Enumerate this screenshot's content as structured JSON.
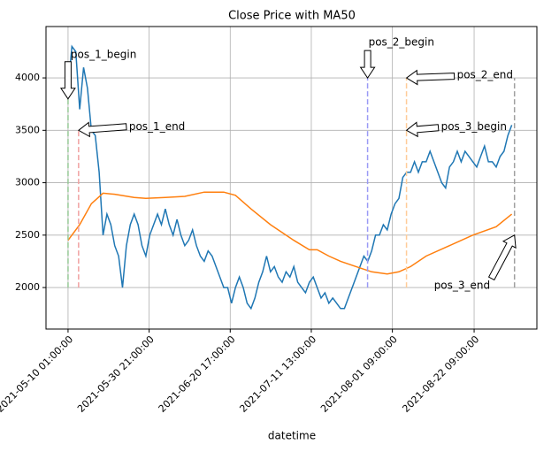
{
  "chart_data": {
    "type": "line",
    "title": "Close Price with MA50",
    "xlabel": "datetime",
    "grid": true,
    "xlim": [
      "2021-05-04 09:00:00",
      "2021-09-07 12:00:00"
    ],
    "ylim": [
      1604,
      4490
    ],
    "xticks": [
      "2021-05-10 01:00:00",
      "2021-05-30 21:00:00",
      "2021-06-20 17:00:00",
      "2021-07-11 13:00:00",
      "2021-08-01 09:00:00",
      "2021-08-22 09:00:00"
    ],
    "yticks": [
      2000,
      2500,
      3000,
      3500,
      4000
    ],
    "series": [
      {
        "color": "#1f77b4",
        "x": [
          "2021-05-10 01:00:00",
          "2021-05-11 01:00:00",
          "2021-05-12 01:00:00",
          "2021-05-13 01:00:00",
          "2021-05-14 01:00:00",
          "2021-05-15 01:00:00",
          "2021-05-16 01:00:00",
          "2021-05-17 01:00:00",
          "2021-05-18 01:00:00",
          "2021-05-19 01:00:00",
          "2021-05-20 01:00:00",
          "2021-05-21 01:00:00",
          "2021-05-22 01:00:00",
          "2021-05-23 01:00:00",
          "2021-05-24 01:00:00",
          "2021-05-25 01:00:00",
          "2021-05-26 01:00:00",
          "2021-05-27 01:00:00",
          "2021-05-28 01:00:00",
          "2021-05-29 01:00:00",
          "2021-05-30 01:00:00",
          "2021-05-31 01:00:00",
          "2021-06-01 01:00:00",
          "2021-06-02 01:00:00",
          "2021-06-03 01:00:00",
          "2021-06-04 01:00:00",
          "2021-06-05 01:00:00",
          "2021-06-06 01:00:00",
          "2021-06-07 01:00:00",
          "2021-06-08 01:00:00",
          "2021-06-09 01:00:00",
          "2021-06-10 01:00:00",
          "2021-06-11 01:00:00",
          "2021-06-12 01:00:00",
          "2021-06-13 01:00:00",
          "2021-06-14 01:00:00",
          "2021-06-15 01:00:00",
          "2021-06-16 01:00:00",
          "2021-06-17 01:00:00",
          "2021-06-18 01:00:00",
          "2021-06-19 01:00:00",
          "2021-06-20 01:00:00",
          "2021-06-21 01:00:00",
          "2021-06-22 01:00:00",
          "2021-06-23 01:00:00",
          "2021-06-24 01:00:00",
          "2021-06-25 01:00:00",
          "2021-06-26 01:00:00",
          "2021-06-27 01:00:00",
          "2021-06-28 01:00:00",
          "2021-06-29 01:00:00",
          "2021-06-30 01:00:00",
          "2021-07-01 01:00:00",
          "2021-07-02 01:00:00",
          "2021-07-03 01:00:00",
          "2021-07-04 01:00:00",
          "2021-07-05 01:00:00",
          "2021-07-06 01:00:00",
          "2021-07-07 01:00:00",
          "2021-07-08 01:00:00",
          "2021-07-09 01:00:00",
          "2021-07-10 01:00:00",
          "2021-07-11 01:00:00",
          "2021-07-12 01:00:00",
          "2021-07-13 01:00:00",
          "2021-07-14 01:00:00",
          "2021-07-15 01:00:00",
          "2021-07-16 01:00:00",
          "2021-07-17 01:00:00",
          "2021-07-18 01:00:00",
          "2021-07-19 01:00:00",
          "2021-07-20 01:00:00",
          "2021-07-21 01:00:00",
          "2021-07-22 01:00:00",
          "2021-07-23 01:00:00",
          "2021-07-24 01:00:00",
          "2021-07-25 01:00:00",
          "2021-07-26 01:00:00",
          "2021-07-27 01:00:00",
          "2021-07-28 01:00:00",
          "2021-07-29 01:00:00",
          "2021-07-30 01:00:00",
          "2021-07-31 01:00:00",
          "2021-08-01 01:00:00",
          "2021-08-02 01:00:00",
          "2021-08-03 01:00:00",
          "2021-08-04 01:00:00",
          "2021-08-05 01:00:00",
          "2021-08-06 01:00:00",
          "2021-08-07 01:00:00",
          "2021-08-08 01:00:00",
          "2021-08-09 01:00:00",
          "2021-08-10 01:00:00",
          "2021-08-11 01:00:00",
          "2021-08-12 01:00:00",
          "2021-08-13 01:00:00",
          "2021-08-14 01:00:00",
          "2021-08-15 01:00:00",
          "2021-08-16 01:00:00",
          "2021-08-17 01:00:00",
          "2021-08-18 01:00:00",
          "2021-08-19 01:00:00",
          "2021-08-20 01:00:00",
          "2021-08-21 01:00:00",
          "2021-08-22 01:00:00",
          "2021-08-23 01:00:00",
          "2021-08-24 01:00:00",
          "2021-08-25 01:00:00",
          "2021-08-26 01:00:00",
          "2021-08-27 01:00:00",
          "2021-08-28 01:00:00",
          "2021-08-29 01:00:00",
          "2021-08-30 01:00:00",
          "2021-08-31 01:00:00",
          "2021-09-01 01:00:00"
        ],
        "values": [
          3900,
          4300,
          4250,
          3700,
          4100,
          3900,
          3500,
          3450,
          3100,
          2500,
          2700,
          2600,
          2400,
          2300,
          2000,
          2400,
          2600,
          2700,
          2600,
          2400,
          2300,
          2500,
          2600,
          2700,
          2600,
          2750,
          2600,
          2500,
          2650,
          2500,
          2400,
          2450,
          2550,
          2400,
          2300,
          2250,
          2350,
          2300,
          2200,
          2100,
          2000,
          2000,
          1850,
          2000,
          2100,
          2000,
          1850,
          1800,
          1900,
          2050,
          2150,
          2300,
          2150,
          2200,
          2100,
          2050,
          2150,
          2100,
          2200,
          2050,
          2000,
          1950,
          2050,
          2100,
          2000,
          1900,
          1950,
          1850,
          1900,
          1850,
          1800,
          1800,
          1900,
          2000,
          2100,
          2200,
          2300,
          2250,
          2350,
          2500,
          2500,
          2600,
          2550,
          2700,
          2800,
          2850,
          3050,
          3100,
          3100,
          3200,
          3100,
          3200,
          3200,
          3300,
          3200,
          3100,
          3000,
          2950,
          3150,
          3200,
          3300,
          3200,
          3300,
          3250,
          3200,
          3150,
          3250,
          3350,
          3200,
          3200,
          3150,
          3250,
          3300,
          3450,
          3550
        ]
      },
      {
        "color": "#ff7f0e",
        "x": [
          "2021-05-10 01:00:00",
          "2021-05-13 01:00:00",
          "2021-05-16 01:00:00",
          "2021-05-19 01:00:00",
          "2021-05-22 01:00:00",
          "2021-05-27 01:00:00",
          "2021-05-30 01:00:00",
          "2021-06-04 01:00:00",
          "2021-06-09 01:00:00",
          "2021-06-14 01:00:00",
          "2021-06-19 01:00:00",
          "2021-06-22 01:00:00",
          "2021-06-26 01:00:00",
          "2021-07-01 01:00:00",
          "2021-07-07 01:00:00",
          "2021-07-11 01:00:00",
          "2021-07-13 01:00:00",
          "2021-07-16 01:00:00",
          "2021-07-19 01:00:00",
          "2021-07-23 01:00:00",
          "2021-07-27 01:00:00",
          "2021-07-31 01:00:00",
          "2021-08-03 01:00:00",
          "2021-08-06 01:00:00",
          "2021-08-10 01:00:00",
          "2021-08-16 01:00:00",
          "2021-08-22 01:00:00",
          "2021-08-28 01:00:00",
          "2021-09-01 01:00:00"
        ],
        "values": [
          2450,
          2600,
          2800,
          2900,
          2890,
          2860,
          2850,
          2860,
          2870,
          2910,
          2910,
          2880,
          2750,
          2600,
          2450,
          2360,
          2360,
          2300,
          2250,
          2200,
          2150,
          2130,
          2150,
          2200,
          2300,
          2400,
          2500,
          2580,
          2700
        ]
      }
    ],
    "vlines": [
      {
        "x": "2021-05-10 01:00:00",
        "ymin": 2000,
        "ymax": 4000,
        "color": "#96c896"
      },
      {
        "x": "2021-05-12 18:00:00",
        "ymin": 2000,
        "ymax": 3500,
        "color": "#f0a0a0"
      },
      {
        "x": "2021-07-26 00:00:00",
        "ymin": 2000,
        "ymax": 4000,
        "color": "#9a9af5"
      },
      {
        "x": "2021-08-05 00:00:00",
        "ymin": 2000,
        "ymax": 4000,
        "color": "#ffcc99"
      },
      {
        "x": "2021-09-01 18:00:00",
        "ymin": 2000,
        "ymax": 4000,
        "color": "#a0a0a0"
      }
    ],
    "annotations": [
      {
        "text": "pos_1_begin",
        "x": "2021-05-10 01:00:00",
        "y": 3800
      },
      {
        "text": "pos_1_end",
        "x": "2021-05-12 18:00:00",
        "y": 3500
      },
      {
        "text": "pos_2_begin",
        "x": "2021-07-26 00:00:00",
        "y": 4000
      },
      {
        "text": "pos_2_end",
        "x": "2021-08-05 00:00:00",
        "y": 4000
      },
      {
        "text": "pos_3_begin",
        "x": "2021-08-05 00:00:00",
        "y": 3500
      },
      {
        "text": "pos_3_end",
        "x": "2021-09-01 18:00:00",
        "y": 2500
      }
    ]
  }
}
